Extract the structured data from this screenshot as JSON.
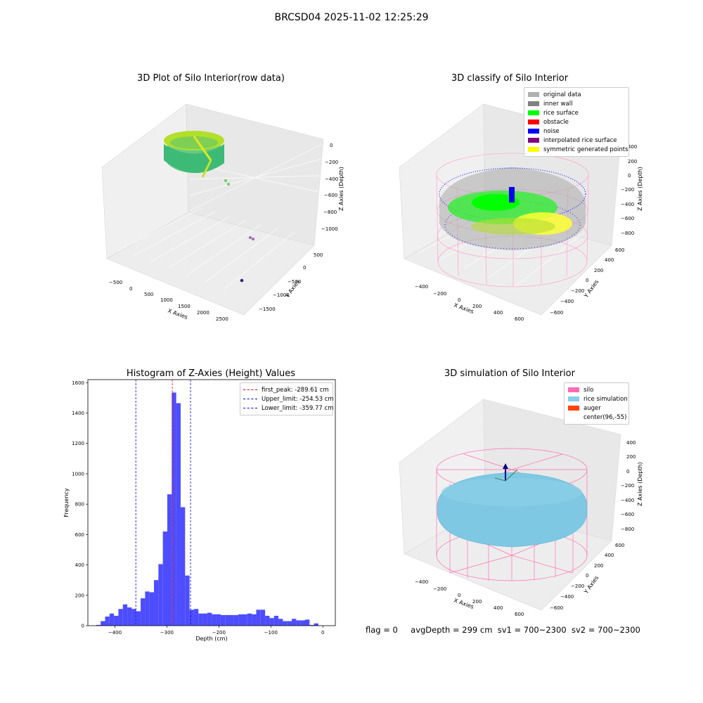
{
  "suptitle": "BRCSD04 2025-11-02 12:25:29",
  "panels": {
    "raw": {
      "title": "3D Plot of Silo Interior(row data)",
      "xlabel": "X Axies",
      "ylabel": "Y Axies",
      "zlabel": "Z Axies (Depth)",
      "x_ticks": [
        "−500",
        "0",
        "500",
        "1000",
        "1500",
        "2000",
        "2500"
      ],
      "y_ticks": [
        "500",
        "0",
        "−500",
        "−1000",
        "−1500"
      ],
      "z_ticks": [
        "0",
        "−200",
        "−400",
        "−600",
        "−800",
        "−1000"
      ]
    },
    "classify": {
      "title": "3D classify of Silo Interior",
      "xlabel": "X Axies",
      "ylabel": "Y Axies",
      "zlabel": "Z Axies (Depth)",
      "x_ticks": [
        "−400",
        "−200",
        "0",
        "200",
        "400",
        "600"
      ],
      "y_ticks": [
        "600",
        "400",
        "200",
        "0",
        "−200",
        "−400",
        "−600"
      ],
      "z_ticks": [
        "400",
        "200",
        "0",
        "−200",
        "−400",
        "−600",
        "−800"
      ],
      "legend": [
        {
          "label": "original data",
          "color": "#b0b0b0"
        },
        {
          "label": "inner wall",
          "color": "#808080"
        },
        {
          "label": "rice surface",
          "color": "#00ff00"
        },
        {
          "label": "obstacle",
          "color": "#ff0000"
        },
        {
          "label": "noise",
          "color": "#0000ff"
        },
        {
          "label": "interpolated rice surface",
          "color": "#800080"
        },
        {
          "label": "symmetric generated points",
          "color": "#ffff00"
        }
      ]
    },
    "histogram": {
      "title": "Histogram of Z-Axies (Height) Values",
      "legend": [
        {
          "label": "first_peak: -289.61 cm",
          "color": "#ff0000"
        },
        {
          "label": "Upper_limit: -254.53 cm",
          "color": "#0000ff"
        },
        {
          "label": "Lower_limit: -359.77 cm",
          "color": "#0000ff"
        }
      ]
    },
    "simulation": {
      "title": "3D simulation of Silo Interior",
      "xlabel": "X Axies",
      "ylabel": "Y Axies",
      "zlabel": "Z Axies (Depth)",
      "x_ticks": [
        "−400",
        "−200",
        "0",
        "200",
        "400",
        "600"
      ],
      "y_ticks": [
        "600",
        "400",
        "200",
        "0",
        "−200",
        "−400",
        "−600"
      ],
      "z_ticks": [
        "400",
        "200",
        "0",
        "−200",
        "−400",
        "−600",
        "−800"
      ],
      "legend": [
        {
          "label": "silo",
          "color": "#ff69b4"
        },
        {
          "label": "rice simulation",
          "color": "#87ceeb"
        },
        {
          "label": "auger",
          "color": "#ff4500"
        },
        {
          "label": "center(96,-55)",
          "color": ""
        }
      ]
    }
  },
  "status": {
    "flag": "flag = 0",
    "avg_depth": "avgDepth = 299 cm",
    "sv1": "sv1 = 700~2300",
    "sv2": "sv2 = 700~2300"
  },
  "chart_data": [
    {
      "type": "scatter",
      "title": "3D Plot of Silo Interior(row data)",
      "xlabel": "X Axies",
      "ylabel": "Y Axies",
      "zlabel": "Z Axies (Depth)",
      "xlim": [
        -700,
        2800
      ],
      "ylim": [
        -1700,
        700
      ],
      "zlim": [
        -1100,
        50
      ]
    },
    {
      "type": "scatter",
      "title": "3D classify of Silo Interior",
      "xlabel": "X Axies",
      "ylabel": "Y Axies",
      "zlabel": "Z Axies (Depth)",
      "series": [
        {
          "name": "original data"
        },
        {
          "name": "inner wall"
        },
        {
          "name": "rice surface"
        },
        {
          "name": "obstacle"
        },
        {
          "name": "noise"
        },
        {
          "name": "interpolated rice surface"
        },
        {
          "name": "symmetric generated points"
        }
      ],
      "xlim": [
        -500,
        700
      ],
      "ylim": [
        -700,
        700
      ],
      "zlim": [
        -900,
        450
      ]
    },
    {
      "type": "bar",
      "title": "Histogram of Z-Axies (Height) Values",
      "xlabel": "Depth (cm)",
      "ylabel": "Frequency",
      "xlim": [
        -452,
        24
      ],
      "ylim": [
        0,
        1620
      ],
      "x_ticks": [
        -400,
        -300,
        -200,
        -100,
        0
      ],
      "y_ticks": [
        0,
        200,
        400,
        600,
        800,
        1000,
        1200,
        1400,
        1600
      ],
      "bin_width": 8.55,
      "bin_start": -436,
      "values": [
        5,
        30,
        60,
        80,
        65,
        110,
        140,
        120,
        110,
        95,
        180,
        225,
        220,
        300,
        405,
        620,
        865,
        1535,
        1465,
        780,
        330,
        105,
        110,
        80,
        80,
        85,
        75,
        75,
        70,
        70,
        70,
        70,
        75,
        75,
        80,
        75,
        105,
        105,
        65,
        50,
        65,
        45,
        30,
        30,
        45,
        35,
        35,
        40,
        5,
        15
      ],
      "vlines": [
        {
          "name": "first_peak: -289.61 cm",
          "x": -289.61,
          "color": "#ff0000"
        },
        {
          "name": "Upper_limit: -254.53 cm",
          "x": -254.53,
          "color": "#0000ff"
        },
        {
          "name": "Lower_limit: -359.77 cm",
          "x": -359.77,
          "color": "#0000ff"
        }
      ],
      "bar_color": "#4d4dff"
    },
    {
      "type": "scatter",
      "title": "3D simulation of Silo Interior",
      "xlabel": "X Axies",
      "ylabel": "Y Axies",
      "zlabel": "Z Axies (Depth)",
      "series": [
        {
          "name": "silo"
        },
        {
          "name": "rice simulation"
        },
        {
          "name": "auger"
        }
      ],
      "xlim": [
        -500,
        700
      ],
      "ylim": [
        -700,
        700
      ],
      "zlim": [
        -900,
        450
      ]
    }
  ]
}
